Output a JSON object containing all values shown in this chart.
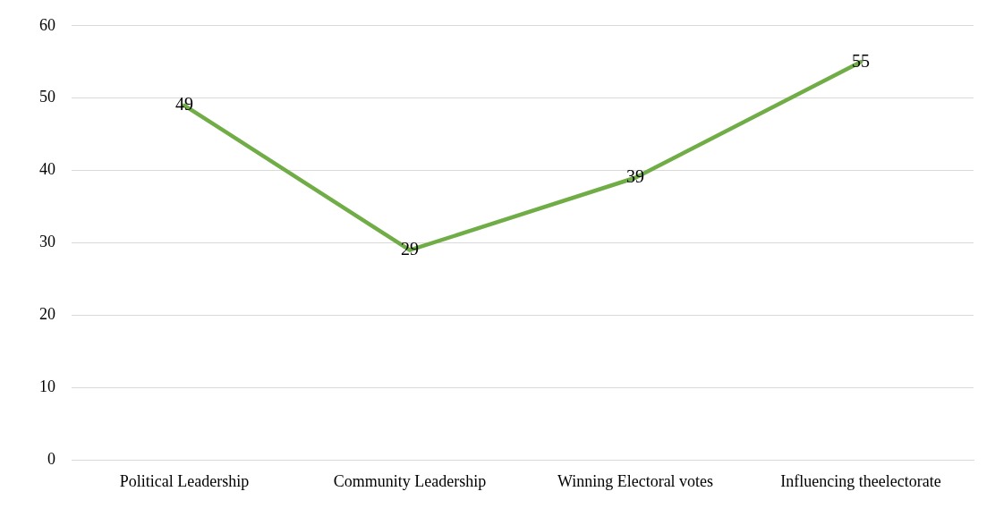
{
  "chart_data": {
    "type": "line",
    "categories": [
      "Political Leadership",
      "Community Leadership",
      "Winning Electoral votes",
      "Influencing theelectorate"
    ],
    "series": [
      {
        "color": "#70ad47",
        "values": [
          49,
          29,
          39,
          55
        ]
      }
    ],
    "ylim": [
      0,
      60
    ],
    "yticks": [
      0,
      10,
      20,
      30,
      40,
      50,
      60
    ],
    "grid": "y",
    "legend": false,
    "marker": "none",
    "line_style": "solid",
    "data_labels": true
  }
}
